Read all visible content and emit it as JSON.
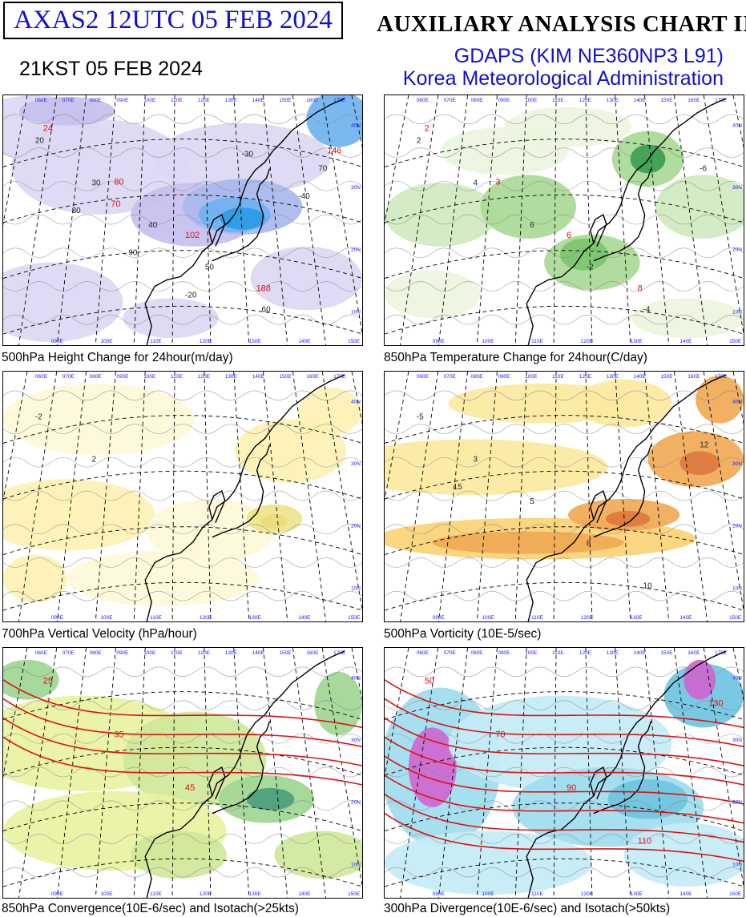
{
  "header": {
    "code": "AXAS2  12UTC 05 FEB 2024",
    "local_time": "21KST 05 FEB 2024",
    "title": "AUXILIARY ANALYSIS CHART II",
    "model": "GDAPS (KIM NE360NP3 L91)",
    "agency": "Korea Meteorological Administration"
  },
  "colors": {
    "header_blue": "#1010d0",
    "contour_red": "#dd1111",
    "grid_blue": "#1a1aff"
  },
  "panels": [
    {
      "caption": "500hPa Height Change for 24hour(m/day)",
      "fill": "blue-purple",
      "labels": [
        "20",
        "30",
        "40",
        "50",
        "60",
        "70",
        "80",
        "90",
        "-20",
        "-30",
        "-40"
      ],
      "red_labels": [
        "24",
        "80",
        "102",
        "188",
        "146",
        "70"
      ]
    },
    {
      "caption": "850hPa Temperature Change for 24hour(C/day)",
      "fill": "green",
      "labels": [
        "2",
        "4",
        "6",
        "-2",
        "-4",
        "-6"
      ],
      "red_labels": [
        "2",
        "3",
        "6",
        "8"
      ]
    },
    {
      "caption": "700hPa Vertical Velocity (hPa/hour)",
      "fill": "yellow",
      "labels": [
        "-2",
        "2"
      ],
      "red_labels": []
    },
    {
      "caption": "500hPa Vorticity (10E-5/sec)",
      "fill": "yellow-orange",
      "labels": [
        "-5",
        "3",
        "5",
        "8",
        "10",
        "12",
        "15"
      ],
      "red_labels": []
    },
    {
      "caption": "850hPa Convergence(10E-6/sec) and Isotach(>25kts)",
      "fill": "yellow-green",
      "labels": [],
      "red_labels": [
        "25",
        "35",
        "45"
      ]
    },
    {
      "caption": "300hPa Divergence(10E-6/sec) and Isotach(>50kts)",
      "fill": "cyan",
      "labels": [],
      "red_labels": [
        "50",
        "70",
        "90",
        "110",
        "130"
      ]
    }
  ],
  "map_grid": {
    "longitudes": [
      "060E",
      "070E",
      "080E",
      "090E",
      "100E",
      "110E",
      "120E",
      "130E",
      "140E",
      "150E",
      "160E",
      "170E"
    ],
    "latitudes": [
      "40N",
      "30N",
      "20N",
      "10N"
    ],
    "bottom_longitudes": [
      "090E",
      "100E",
      "110E",
      "120E",
      "130E",
      "140E",
      "150E"
    ]
  }
}
